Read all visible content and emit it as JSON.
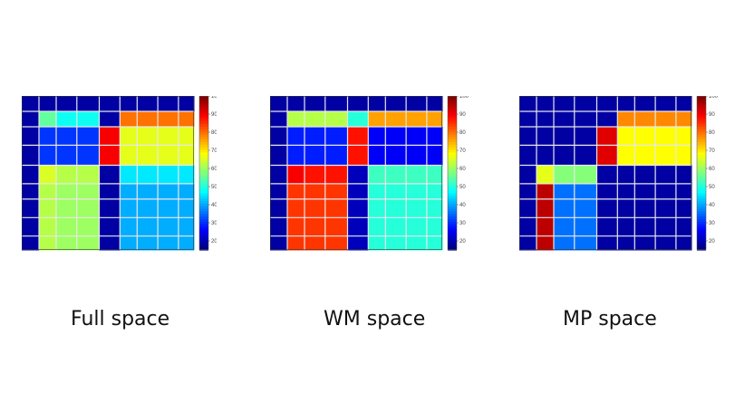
{
  "colorbar": {
    "min": 15,
    "max": 100,
    "ticks": [
      "100",
      "90",
      "80",
      "70",
      "60",
      "50",
      "40",
      "30",
      "20"
    ],
    "tick_values": [
      100,
      90,
      80,
      70,
      60,
      50,
      40,
      30,
      20
    ],
    "colormap": "jet"
  },
  "chart_data": [
    {
      "type": "heatmap",
      "title": "",
      "caption": "Full space",
      "value_range": [
        15,
        100
      ],
      "axis_splits": [
        0.1,
        0.2,
        0.32,
        0.45,
        0.57,
        0.67,
        0.79,
        0.91
      ],
      "colormap": "jet",
      "block_bounds": [
        0,
        0.1,
        0.2,
        0.45,
        0.57,
        1.0
      ],
      "blocks": [
        [
          18,
          18,
          18,
          18,
          18
        ],
        [
          18,
          55,
          48,
          18,
          80
        ],
        [
          18,
          30,
          30,
          90,
          66
        ],
        [
          18,
          65,
          62,
          18,
          45
        ],
        [
          18,
          62,
          60,
          18,
          40
        ]
      ]
    },
    {
      "type": "heatmap",
      "title": "",
      "caption": "WM space",
      "value_range": [
        15,
        100
      ],
      "axis_splits": [
        0.1,
        0.2,
        0.32,
        0.45,
        0.57,
        0.67,
        0.79,
        0.91
      ],
      "colormap": "jet",
      "block_bounds": [
        0,
        0.1,
        0.2,
        0.45,
        0.57,
        1.0
      ],
      "blocks": [
        [
          18,
          18,
          18,
          18,
          18
        ],
        [
          18,
          62,
          62,
          50,
          76
        ],
        [
          18,
          28,
          28,
          88,
          25
        ],
        [
          18,
          90,
          88,
          20,
          52
        ],
        [
          18,
          85,
          85,
          20,
          50
        ]
      ]
    },
    {
      "type": "heatmap",
      "title": "",
      "caption": "MP space",
      "value_range": [
        15,
        100
      ],
      "axis_splits": [
        0.1,
        0.2,
        0.32,
        0.45,
        0.57,
        0.67,
        0.79,
        0.91
      ],
      "colormap": "jet",
      "block_bounds": [
        0,
        0.1,
        0.2,
        0.45,
        0.57,
        1.0
      ],
      "blocks": [
        [
          18,
          18,
          18,
          18,
          18
        ],
        [
          18,
          18,
          18,
          18,
          78
        ],
        [
          18,
          18,
          18,
          92,
          68
        ],
        [
          18,
          66,
          58,
          18,
          18
        ],
        [
          18,
          95,
          35,
          18,
          18
        ]
      ]
    }
  ]
}
